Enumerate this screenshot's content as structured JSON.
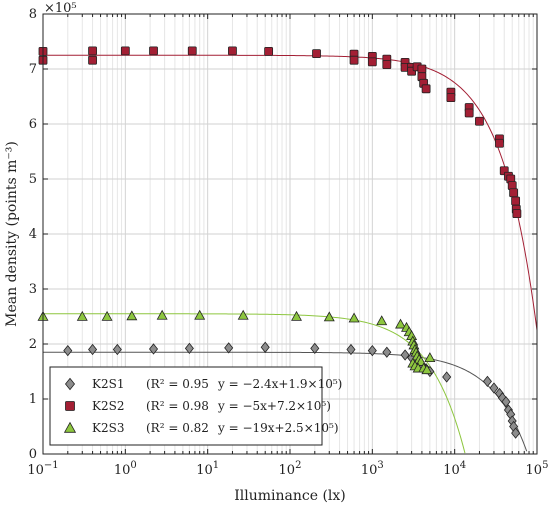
{
  "chart_data": {
    "type": "scatter",
    "title": "",
    "xlabel": "Illuminance (lx)",
    "ylabel": "Mean density (points m⁻³)",
    "x_scale": "log",
    "xlim": [
      0.1,
      100000
    ],
    "ylim": [
      0,
      800000
    ],
    "y_multiplier_label": "×10⁵",
    "x_ticks": [
      {
        "value": 0.1,
        "base": "10",
        "exp": "−1"
      },
      {
        "value": 1,
        "base": "10",
        "exp": "0"
      },
      {
        "value": 10,
        "base": "10",
        "exp": "1"
      },
      {
        "value": 100,
        "base": "10",
        "exp": "2"
      },
      {
        "value": 1000,
        "base": "10",
        "exp": "3"
      },
      {
        "value": 10000,
        "base": "10",
        "exp": "4"
      },
      {
        "value": 100000,
        "base": "10",
        "exp": "5"
      }
    ],
    "y_ticks": [
      {
        "value": 0,
        "label": "0"
      },
      {
        "value": 100000,
        "label": "1"
      },
      {
        "value": 200000,
        "label": "2"
      },
      {
        "value": 300000,
        "label": "3"
      },
      {
        "value": 400000,
        "label": "4"
      },
      {
        "value": 500000,
        "label": "5"
      },
      {
        "value": 600000,
        "label": "6"
      },
      {
        "value": 700000,
        "label": "7"
      },
      {
        "value": 800000,
        "label": "8"
      }
    ],
    "grid": true,
    "legend_position": "bottom-left",
    "series": [
      {
        "name": "K2S1",
        "marker": "diamond",
        "color": "#8c8c8c",
        "line_color": "#555555",
        "r2": "(R² = 0.95",
        "equation": "y = −2.4x+1.9×10⁵)",
        "fit": {
          "a": 2.4,
          "b": 185000
        },
        "points": [
          [
            0.2,
            188000
          ],
          [
            0.4,
            190000
          ],
          [
            0.8,
            190000
          ],
          [
            2.2,
            191000
          ],
          [
            6,
            192000
          ],
          [
            18,
            193000
          ],
          [
            50,
            194000
          ],
          [
            200,
            192000
          ],
          [
            550,
            190000
          ],
          [
            1000,
            188000
          ],
          [
            1500,
            185000
          ],
          [
            2500,
            180000
          ],
          [
            3000,
            175000
          ],
          [
            3500,
            170000
          ],
          [
            4000,
            160000
          ],
          [
            4500,
            155000
          ],
          [
            5000,
            150000
          ],
          [
            8000,
            140000
          ],
          [
            25000,
            132000
          ],
          [
            30000,
            120000
          ],
          [
            35000,
            110000
          ],
          [
            38000,
            102000
          ],
          [
            42000,
            95000
          ],
          [
            45000,
            80000
          ],
          [
            48000,
            72000
          ],
          [
            50000,
            60000
          ],
          [
            52000,
            50000
          ],
          [
            55000,
            38000
          ]
        ]
      },
      {
        "name": "K2S2",
        "marker": "square",
        "color": "#a31f34",
        "line_color": "#a31f34",
        "r2": "(R² = 0.98",
        "equation": "y = −5x+7.2×10⁵)",
        "fit": {
          "a": 5,
          "b": 725000
        },
        "points": [
          [
            0.1,
            732000
          ],
          [
            0.1,
            716000
          ],
          [
            0.4,
            733000
          ],
          [
            0.4,
            716000
          ],
          [
            1,
            733000
          ],
          [
            2.2,
            733000
          ],
          [
            6.5,
            733000
          ],
          [
            20,
            733000
          ],
          [
            55,
            732000
          ],
          [
            210,
            728000
          ],
          [
            600,
            727000
          ],
          [
            600,
            716000
          ],
          [
            1000,
            723000
          ],
          [
            1000,
            713000
          ],
          [
            1500,
            718000
          ],
          [
            1500,
            708000
          ],
          [
            2500,
            712000
          ],
          [
            2500,
            703000
          ],
          [
            3000,
            703000
          ],
          [
            3000,
            696000
          ],
          [
            3500,
            704000
          ],
          [
            4000,
            700000
          ],
          [
            4000,
            686000
          ],
          [
            4200,
            674000
          ],
          [
            4500,
            664000
          ],
          [
            9000,
            658000
          ],
          [
            9000,
            648000
          ],
          [
            15000,
            630000
          ],
          [
            15000,
            620000
          ],
          [
            20000,
            605000
          ],
          [
            35000,
            573000
          ],
          [
            35000,
            565000
          ],
          [
            40000,
            515000
          ],
          [
            45000,
            505000
          ],
          [
            48000,
            500000
          ],
          [
            50000,
            488000
          ],
          [
            52000,
            475000
          ],
          [
            55000,
            460000
          ],
          [
            56000,
            445000
          ],
          [
            57000,
            437000
          ]
        ]
      },
      {
        "name": "K2S3",
        "marker": "triangle",
        "color": "#8dc63f",
        "line_color": "#8dc63f",
        "r2": "(R² = 0.82",
        "equation": "y = −19x+2.5×10⁵)",
        "fit": {
          "a": 19,
          "b": 255000
        },
        "points": [
          [
            0.1,
            250000
          ],
          [
            0.3,
            250000
          ],
          [
            0.6,
            250000
          ],
          [
            1.2,
            251000
          ],
          [
            2.8,
            252000
          ],
          [
            8,
            252000
          ],
          [
            27,
            252000
          ],
          [
            120,
            250000
          ],
          [
            300,
            249000
          ],
          [
            600,
            247000
          ],
          [
            1300,
            242000
          ],
          [
            2200,
            236000
          ],
          [
            2600,
            230000
          ],
          [
            2800,
            222000
          ],
          [
            3000,
            215000
          ],
          [
            3100,
            205000
          ],
          [
            3200,
            198000
          ],
          [
            3300,
            190000
          ],
          [
            3400,
            185000
          ],
          [
            3500,
            178000
          ],
          [
            3700,
            172000
          ],
          [
            3900,
            168000
          ],
          [
            3100,
            165000
          ],
          [
            3300,
            160000
          ],
          [
            3600,
            156000
          ],
          [
            4200,
            156000
          ],
          [
            4600,
            153000
          ],
          [
            5000,
            175000
          ]
        ]
      }
    ]
  }
}
